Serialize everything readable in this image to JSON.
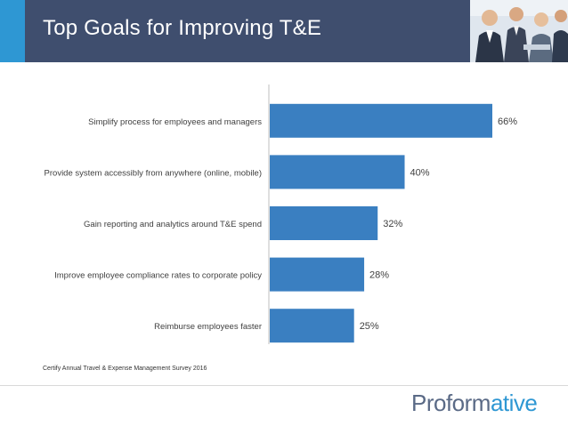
{
  "header": {
    "title": "Top Goals for Improving T&E"
  },
  "colors": {
    "header_bg": "#3f4e6e",
    "accent": "#2e97d3",
    "bar": "#3a7fc1",
    "axis": "#bfbfbf"
  },
  "chart_data": {
    "type": "bar",
    "orientation": "horizontal",
    "categories": [
      "Simplify process for employees and managers",
      "Provide system accessibly from anywhere (online, mobile)",
      "Gain reporting and analytics around T&E spend",
      "Improve employee compliance rates to corporate policy",
      "Reimburse employees faster"
    ],
    "values": [
      66,
      40,
      32,
      28,
      25
    ],
    "value_labels": [
      "66%",
      "40%",
      "32%",
      "28%",
      "25%"
    ],
    "unit": "%",
    "xlim": [
      0,
      70
    ],
    "grid": false,
    "legend": "none"
  },
  "footer": {
    "source": "Certify Annual Travel & Expense Management Survey 2016",
    "logo_part1": "Proform",
    "logo_part2": "ative"
  },
  "icons": {
    "header_photo": "business-people-photo"
  }
}
